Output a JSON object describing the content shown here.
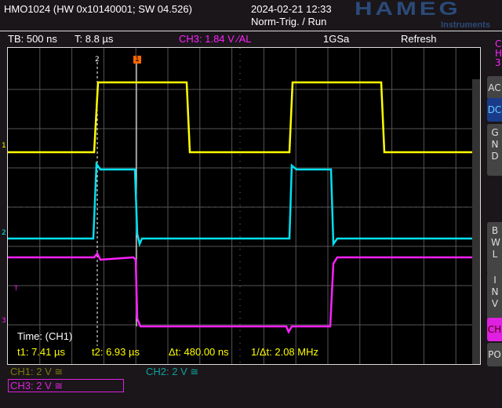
{
  "header": {
    "device": "HMO1024 (HW 0x10140001; SW 04.526)",
    "datetime": "2024-02-21 12:33",
    "trigger_state": "Norm-Trig. / Run",
    "logo": "HAMEG",
    "logo_sub": "Instruments"
  },
  "status": {
    "timebase": "TB: 500 ns",
    "trigger_time": "T: 8.8 µs",
    "trigger": "CH3: 1.84 V ∕AL",
    "sample_rate": "1GSa",
    "mode": "Refresh"
  },
  "side": {
    "channel": "CH3",
    "buttons": [
      "AC",
      "DC",
      "GND",
      "BWL",
      "INV",
      "CH",
      "PO"
    ],
    "active": "DC"
  },
  "markers": {
    "ch1": "1",
    "ch2": "2",
    "ch3": "3",
    "trig": "T",
    "cursor1": "2",
    "cursor2": "1"
  },
  "measure": {
    "title": "Time: (CH1)",
    "t1": "t1: 7.41 µs",
    "t2": "t2: 6.93 µs",
    "dt": "Δt: 480.00 ns",
    "inv_dt": "1/Δt: 2.08 MHz"
  },
  "channels": [
    {
      "label": "CH1: 2 V ≅",
      "color": "#7a7a10"
    },
    {
      "label": "CH2: 2 V ≅",
      "color": "#10a0a0"
    },
    {
      "label": "CH3: 2 V ≅",
      "color": "#e020e0"
    }
  ],
  "colors": {
    "ch1": "#ffff00",
    "ch2": "#00e0f0",
    "ch3": "#ff20ff"
  }
}
